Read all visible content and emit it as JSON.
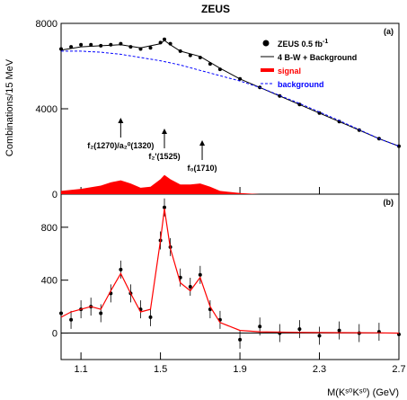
{
  "chart_data": [
    {
      "panel": "(a)",
      "type": "scatter",
      "title": "ZEUS",
      "ylabel": "Combinations/15 MeV",
      "xlabel": "",
      "xlim": [
        1.0,
        2.7
      ],
      "ylim": [
        0,
        8000
      ],
      "yticks": [
        "0",
        "4000",
        "8000"
      ],
      "legend": {
        "placement": "top-right",
        "entries": [
          {
            "label": "ZEUS 0.5 fb",
            "sup": "-1",
            "style": "marker"
          },
          {
            "label": "4 B-W + Background",
            "style": "black-line"
          },
          {
            "label": "signal",
            "style": "red-fill"
          },
          {
            "label": "background",
            "style": "blue-dashed"
          }
        ]
      },
      "annotations": [
        {
          "text": "f₂(1270)/a₂⁰(1320)",
          "x": 1.3
        },
        {
          "text": "f₂'(1525)",
          "x": 1.52
        },
        {
          "text": "f₀(1710)",
          "x": 1.71
        }
      ],
      "series": [
        {
          "name": "ZEUS 0.5 fb-1",
          "kind": "points",
          "x": [
            1.0,
            1.05,
            1.1,
            1.15,
            1.2,
            1.25,
            1.3,
            1.35,
            1.4,
            1.45,
            1.5,
            1.52,
            1.55,
            1.6,
            1.65,
            1.7,
            1.75,
            1.8,
            1.9,
            2.0,
            2.1,
            2.2,
            2.3,
            2.4,
            2.5,
            2.6,
            2.7
          ],
          "y": [
            6800,
            6900,
            7000,
            7000,
            6950,
            7000,
            7050,
            6900,
            6800,
            6850,
            7100,
            7250,
            7050,
            6700,
            6500,
            6400,
            6100,
            5850,
            5400,
            5000,
            4600,
            4200,
            3800,
            3400,
            3000,
            2600,
            2250
          ]
        },
        {
          "name": "4 B-W + Background",
          "kind": "line",
          "x": [
            1.0,
            1.1,
            1.2,
            1.3,
            1.4,
            1.5,
            1.52,
            1.55,
            1.6,
            1.7,
            1.8,
            1.9,
            2.0,
            2.2,
            2.4,
            2.6,
            2.7
          ],
          "y": [
            6750,
            6900,
            6950,
            7000,
            6850,
            7050,
            7200,
            7000,
            6700,
            6450,
            5900,
            5400,
            5000,
            4200,
            3400,
            2600,
            2250
          ]
        },
        {
          "name": "background",
          "kind": "dashed",
          "x": [
            1.0,
            1.1,
            1.2,
            1.3,
            1.4,
            1.5,
            1.6,
            1.7,
            1.8,
            1.9,
            2.0,
            2.2,
            2.4,
            2.6,
            2.7
          ],
          "y": [
            6700,
            6700,
            6650,
            6550,
            6400,
            6250,
            6050,
            5800,
            5550,
            5300,
            5000,
            4250,
            3450,
            2600,
            2250
          ]
        },
        {
          "name": "signal",
          "kind": "fill",
          "x": [
            1.0,
            1.1,
            1.2,
            1.25,
            1.3,
            1.35,
            1.4,
            1.45,
            1.5,
            1.52,
            1.55,
            1.6,
            1.65,
            1.7,
            1.75,
            1.8,
            1.9,
            2.0
          ],
          "y": [
            150,
            250,
            400,
            550,
            650,
            500,
            300,
            350,
            700,
            900,
            700,
            450,
            450,
            500,
            350,
            150,
            50,
            0
          ]
        }
      ]
    },
    {
      "panel": "(b)",
      "type": "scatter",
      "xlabel": "M(Kˢ⁰Kˢ⁰) (GeV)",
      "xlim": [
        1.0,
        2.7
      ],
      "ylim": [
        -200,
        1050
      ],
      "xticks": [
        "1.1",
        "1.5",
        "1.9",
        "2.3",
        "2.7"
      ],
      "yticks": [
        "0",
        "400",
        "800"
      ],
      "series": [
        {
          "name": "data",
          "kind": "points",
          "x": [
            1.0,
            1.05,
            1.1,
            1.15,
            1.2,
            1.25,
            1.3,
            1.35,
            1.4,
            1.45,
            1.5,
            1.52,
            1.55,
            1.6,
            1.65,
            1.7,
            1.75,
            1.8,
            1.9,
            2.0,
            2.1,
            2.2,
            2.3,
            2.4,
            2.5,
            2.6,
            2.7
          ],
          "y": [
            150,
            100,
            180,
            200,
            150,
            300,
            480,
            300,
            180,
            120,
            700,
            950,
            650,
            420,
            350,
            440,
            180,
            100,
            -50,
            50,
            0,
            30,
            -20,
            20,
            0,
            10,
            -10
          ]
        },
        {
          "name": "fit",
          "kind": "line",
          "x": [
            1.0,
            1.05,
            1.1,
            1.15,
            1.2,
            1.25,
            1.3,
            1.35,
            1.4,
            1.45,
            1.5,
            1.52,
            1.55,
            1.6,
            1.65,
            1.7,
            1.75,
            1.8,
            1.9,
            2.0,
            2.2,
            2.4,
            2.6,
            2.7
          ],
          "y": [
            120,
            160,
            180,
            200,
            180,
            320,
            450,
            300,
            160,
            180,
            700,
            940,
            640,
            380,
            320,
            420,
            200,
            80,
            20,
            10,
            5,
            3,
            2,
            0
          ]
        }
      ]
    }
  ]
}
